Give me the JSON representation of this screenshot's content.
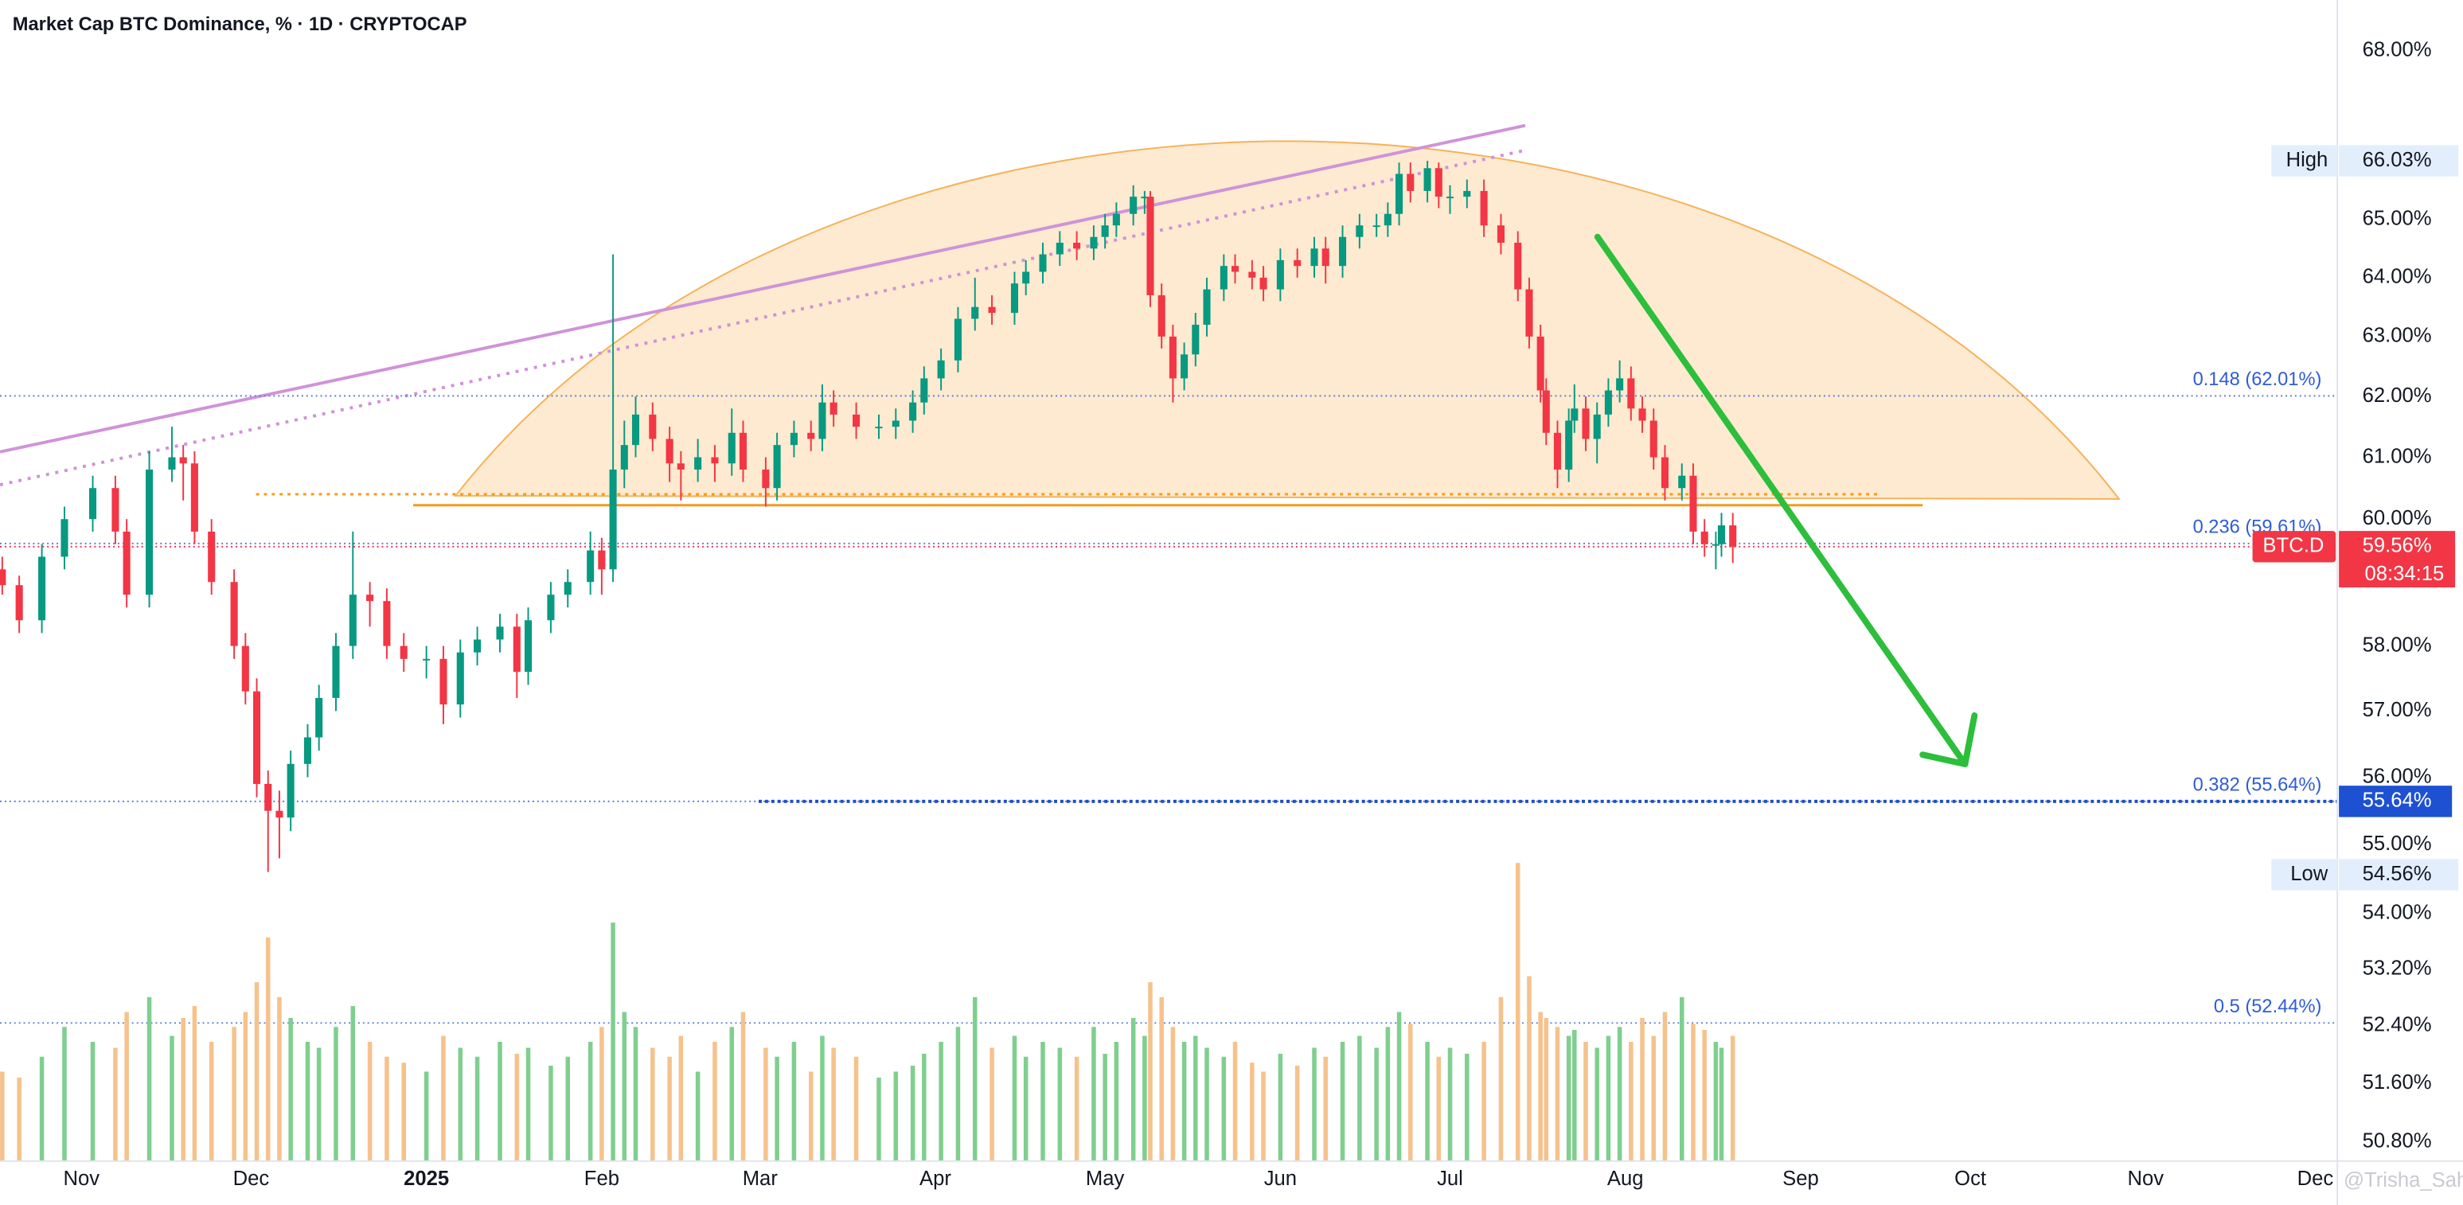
{
  "chart_data": {
    "type": "candlestick",
    "title": "Market Cap BTC Dominance, % · 1D · CRYPTOCAP",
    "log_scale": true,
    "grid": false,
    "up_color": "#089981",
    "down_color": "#f23645",
    "volume_up_color": "#7fcf8f",
    "volume_down_color": "#f6c28c",
    "xlim": [
      -14.4,
      398.9
    ],
    "xticks": [
      {
        "value": 0,
        "label": "Nov"
      },
      {
        "value": 30,
        "label": "Dec"
      },
      {
        "value": 61,
        "label": "2025",
        "bold": true
      },
      {
        "value": 92,
        "label": "Feb"
      },
      {
        "value": 120,
        "label": "Mar"
      },
      {
        "value": 151,
        "label": "Apr"
      },
      {
        "value": 181,
        "label": "May"
      },
      {
        "value": 212,
        "label": "Jun"
      },
      {
        "value": 242,
        "label": "Jul"
      },
      {
        "value": 273,
        "label": "Aug"
      },
      {
        "value": 304,
        "label": "Sep"
      },
      {
        "value": 334,
        "label": "Oct"
      },
      {
        "value": 365,
        "label": "Nov"
      },
      {
        "value": 395,
        "label": "Dec"
      }
    ],
    "ylim": [
      50.54,
      68.93
    ],
    "yticks": [
      {
        "value": 68,
        "label": "68.00%"
      },
      {
        "value": 65,
        "label": "65.00%"
      },
      {
        "value": 64,
        "label": "64.00%"
      },
      {
        "value": 63,
        "label": "63.00%"
      },
      {
        "value": 62,
        "label": "62.00%"
      },
      {
        "value": 61,
        "label": "61.00%"
      },
      {
        "value": 60,
        "label": "60.00%"
      },
      {
        "value": 58,
        "label": "58.00%"
      },
      {
        "value": 57,
        "label": "57.00%"
      },
      {
        "value": 56,
        "label": "56.00%"
      },
      {
        "value": 55,
        "label": "55.00%"
      },
      {
        "value": 54,
        "label": "54.00%"
      },
      {
        "value": 53.2,
        "label": "53.20%"
      },
      {
        "value": 52.4,
        "label": "52.40%"
      },
      {
        "value": 51.6,
        "label": "51.60%"
      },
      {
        "value": 50.8,
        "label": "50.80%"
      }
    ],
    "x": [
      -14,
      -11,
      -7,
      -3,
      2,
      6,
      8,
      12,
      16,
      18,
      20,
      23,
      27,
      29,
      31,
      33,
      35,
      37,
      40,
      42,
      45,
      48,
      51,
      54,
      57,
      61,
      64,
      67,
      70,
      74,
      77,
      79,
      83,
      86,
      90,
      92,
      94,
      96,
      98,
      101,
      104,
      106,
      109,
      112,
      115,
      117,
      121,
      123,
      126,
      129,
      131,
      133,
      137,
      141,
      144,
      147,
      149,
      152,
      155,
      158,
      161,
      165,
      167,
      170,
      173,
      176,
      179,
      181,
      183,
      186,
      188,
      189,
      191,
      193,
      195,
      197,
      199,
      202,
      204,
      207,
      209,
      212,
      215,
      218,
      220,
      223,
      226,
      229,
      231,
      233,
      235,
      238,
      240,
      242,
      245,
      248,
      251,
      254,
      256,
      258,
      259,
      261,
      263,
      264,
      266,
      268,
      270,
      272,
      274,
      276,
      278,
      280,
      283,
      285,
      287,
      289,
      290,
      292
    ],
    "open": [
      59.2,
      58.95,
      58.4,
      59.4,
      60.0,
      60.5,
      59.8,
      58.8,
      60.8,
      61.0,
      60.9,
      59.8,
      59.0,
      58.0,
      57.3,
      55.9,
      55.5,
      55.4,
      56.2,
      56.6,
      57.2,
      58.0,
      58.8,
      58.7,
      58.0,
      57.8,
      57.8,
      57.1,
      57.9,
      58.1,
      58.3,
      57.6,
      58.4,
      58.8,
      59.0,
      59.5,
      59.2,
      60.8,
      61.2,
      61.7,
      61.3,
      60.9,
      60.8,
      61.0,
      60.9,
      61.4,
      60.8,
      60.5,
      61.2,
      61.4,
      61.3,
      61.9,
      61.7,
      61.5,
      61.5,
      61.6,
      61.9,
      62.3,
      62.6,
      63.3,
      63.5,
      63.4,
      63.9,
      64.1,
      64.4,
      64.6,
      64.5,
      64.7,
      64.9,
      65.1,
      65.4,
      65.4,
      63.7,
      63.0,
      62.3,
      62.7,
      63.2,
      63.8,
      64.2,
      64.1,
      64.0,
      63.8,
      64.3,
      64.2,
      64.5,
      64.2,
      64.7,
      64.9,
      64.9,
      65.1,
      65.8,
      65.5,
      65.9,
      65.4,
      65.4,
      65.5,
      64.9,
      64.6,
      63.8,
      63.0,
      62.1,
      61.4,
      60.8,
      61.6,
      61.8,
      61.3,
      61.7,
      62.1,
      62.3,
      61.8,
      61.6,
      61.0,
      60.5,
      60.7,
      59.8,
      59.6,
      59.6,
      59.9
    ],
    "high": [
      59.4,
      59.1,
      59.6,
      60.2,
      60.7,
      60.7,
      60.0,
      61.1,
      61.5,
      61.2,
      61.1,
      60.0,
      59.2,
      58.2,
      57.5,
      56.1,
      55.8,
      56.4,
      56.8,
      57.4,
      58.2,
      59.8,
      59.0,
      58.9,
      58.2,
      58.0,
      58.0,
      58.1,
      58.3,
      58.5,
      58.5,
      58.6,
      59.0,
      59.2,
      59.8,
      59.7,
      64.4,
      61.6,
      62.0,
      61.9,
      61.5,
      61.1,
      61.3,
      61.2,
      61.8,
      61.6,
      61.0,
      61.4,
      61.6,
      61.6,
      62.2,
      62.1,
      61.9,
      61.7,
      61.8,
      62.1,
      62.5,
      62.8,
      63.5,
      64.0,
      63.7,
      64.1,
      64.3,
      64.6,
      64.8,
      64.8,
      64.9,
      65.1,
      65.3,
      65.6,
      65.5,
      65.5,
      63.9,
      63.2,
      62.9,
      63.4,
      64.0,
      64.4,
      64.4,
      64.3,
      64.2,
      64.5,
      64.5,
      64.7,
      64.7,
      64.9,
      65.1,
      65.1,
      65.3,
      66.0,
      66.0,
      66.03,
      66.0,
      65.6,
      65.7,
      65.7,
      65.1,
      64.8,
      64.0,
      63.2,
      62.3,
      61.6,
      61.8,
      62.2,
      62.0,
      61.9,
      62.3,
      62.6,
      62.5,
      62.0,
      61.8,
      61.2,
      60.9,
      60.9,
      60.0,
      59.8,
      60.1,
      60.1
    ],
    "low": [
      58.8,
      58.2,
      58.2,
      59.2,
      59.8,
      59.6,
      58.6,
      58.6,
      60.6,
      60.3,
      59.6,
      58.8,
      57.8,
      57.1,
      55.7,
      54.6,
      54.8,
      55.2,
      56.0,
      56.4,
      57.0,
      57.8,
      58.3,
      57.8,
      57.6,
      57.5,
      56.8,
      56.9,
      57.7,
      57.9,
      57.2,
      57.4,
      58.2,
      58.6,
      58.8,
      58.8,
      59.0,
      60.5,
      61.0,
      61.1,
      60.6,
      60.3,
      60.6,
      60.6,
      60.7,
      60.6,
      60.2,
      60.3,
      61.0,
      61.1,
      61.1,
      61.5,
      61.3,
      61.3,
      61.3,
      61.4,
      61.7,
      62.1,
      62.4,
      63.1,
      63.2,
      63.2,
      63.7,
      63.9,
      64.2,
      64.3,
      64.3,
      64.5,
      64.7,
      64.9,
      65.1,
      63.5,
      62.8,
      61.9,
      62.1,
      62.5,
      63.0,
      63.6,
      63.9,
      63.8,
      63.6,
      63.6,
      64.0,
      64.0,
      63.9,
      64.0,
      64.5,
      64.7,
      64.7,
      64.9,
      65.3,
      65.3,
      65.2,
      65.1,
      65.2,
      64.7,
      64.4,
      63.6,
      62.8,
      61.9,
      61.2,
      60.5,
      60.6,
      61.4,
      61.1,
      60.9,
      61.5,
      61.9,
      61.6,
      61.4,
      60.8,
      60.3,
      60.3,
      59.6,
      59.4,
      59.2,
      59.4,
      59.3
    ],
    "close": [
      58.95,
      58.4,
      59.4,
      60.0,
      60.5,
      59.8,
      58.8,
      60.8,
      61.0,
      60.9,
      59.8,
      59.0,
      58.0,
      57.3,
      55.9,
      55.5,
      55.4,
      56.2,
      56.6,
      57.2,
      58.0,
      58.8,
      58.7,
      58.0,
      57.8,
      57.8,
      57.1,
      57.9,
      58.1,
      58.3,
      57.6,
      58.4,
      58.8,
      59.0,
      59.5,
      59.2,
      60.8,
      61.2,
      61.7,
      61.3,
      60.9,
      60.8,
      61.0,
      60.9,
      61.4,
      60.8,
      60.5,
      61.2,
      61.4,
      61.3,
      61.9,
      61.7,
      61.5,
      61.5,
      61.6,
      61.9,
      62.3,
      62.6,
      63.3,
      63.5,
      63.4,
      63.9,
      64.1,
      64.4,
      64.6,
      64.5,
      64.7,
      64.9,
      65.1,
      65.4,
      65.4,
      63.7,
      63.0,
      62.3,
      62.7,
      63.2,
      63.8,
      64.2,
      64.1,
      64.0,
      63.8,
      64.3,
      64.2,
      64.5,
      64.2,
      64.7,
      64.9,
      64.9,
      65.1,
      65.8,
      65.5,
      65.9,
      65.4,
      65.4,
      65.5,
      64.9,
      64.6,
      63.8,
      63.0,
      62.1,
      61.4,
      60.8,
      61.6,
      61.8,
      61.3,
      61.7,
      62.1,
      62.3,
      61.8,
      61.6,
      61.0,
      60.5,
      60.7,
      59.8,
      59.6,
      59.6,
      59.9,
      59.56
    ],
    "volume": [
      30,
      28,
      35,
      45,
      40,
      38,
      50,
      55,
      42,
      48,
      52,
      40,
      45,
      50,
      60,
      75,
      55,
      48,
      40,
      38,
      45,
      52,
      40,
      35,
      33,
      30,
      42,
      38,
      35,
      40,
      36,
      38,
      32,
      35,
      40,
      45,
      80,
      50,
      45,
      38,
      35,
      42,
      30,
      40,
      45,
      50,
      38,
      35,
      40,
      30,
      42,
      38,
      35,
      28,
      30,
      32,
      36,
      40,
      45,
      55,
      38,
      42,
      35,
      40,
      38,
      35,
      45,
      36,
      40,
      48,
      42,
      60,
      55,
      45,
      40,
      42,
      38,
      35,
      40,
      33,
      30,
      36,
      32,
      38,
      35,
      40,
      42,
      38,
      45,
      50,
      46,
      40,
      35,
      38,
      36,
      40,
      55,
      100,
      62,
      50,
      48,
      45,
      42,
      44,
      40,
      38,
      42,
      45,
      40,
      48,
      42,
      50,
      55,
      46,
      44,
      40,
      38,
      42
    ],
    "fib_levels": [
      {
        "value": 62.01,
        "label": "0.148 (62.01%)"
      },
      {
        "value": 59.61,
        "label": "0.236 (59.61%)"
      },
      {
        "value": 55.64,
        "label": "0.382 (55.64%)"
      },
      {
        "value": 52.44,
        "label": "0.5 (52.44%)"
      }
    ],
    "high_label": {
      "text": "High",
      "value": 66.03,
      "label": "66.03%"
    },
    "low_label": {
      "text": "Low",
      "value": 54.56,
      "label": "54.56%"
    },
    "last_price": {
      "name": "BTC.D",
      "value": 59.56,
      "label": "59.56%",
      "countdown": "08:34:15"
    },
    "target": {
      "value": 55.64,
      "label": "55.64%"
    },
    "watermark": "@Trisha_Saha"
  }
}
